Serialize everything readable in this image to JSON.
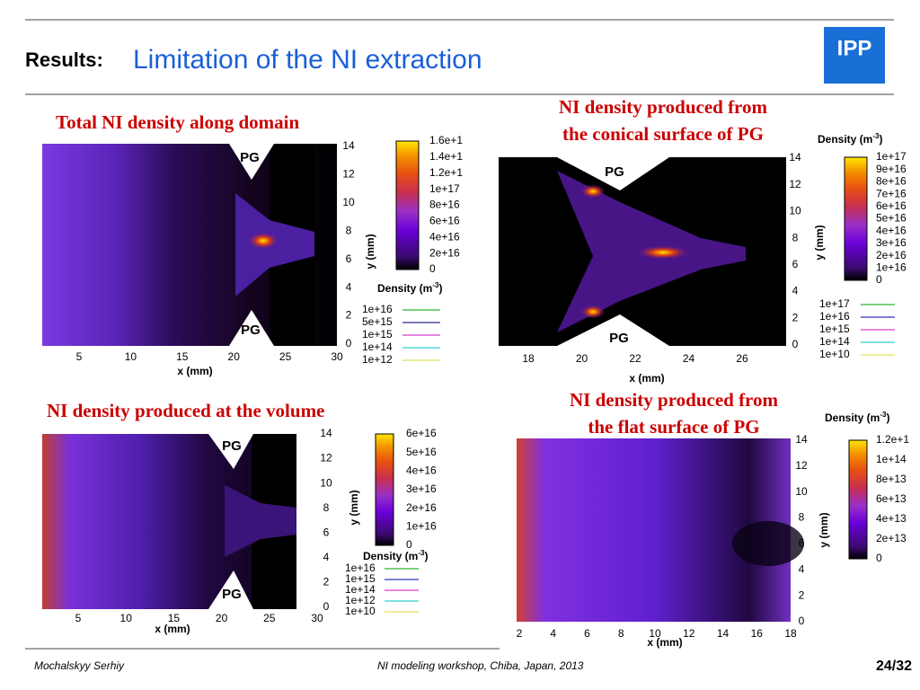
{
  "header": {
    "section": "Results:",
    "title": "Limitation of the NI extraction",
    "logo": "IPP"
  },
  "panels": [
    {
      "title": [
        "Total NI density along domain"
      ],
      "pg": [
        "PG",
        "PG"
      ],
      "yticks": [
        14,
        12,
        10,
        8,
        6,
        4,
        2,
        0
      ],
      "xticks": [
        5,
        10,
        15,
        20,
        25,
        30
      ],
      "x_label": "x (mm)",
      "y_label": "y (mm)",
      "colorbar_label": {
        "base": "Density (m",
        "exponent": "-3",
        "close": ")"
      },
      "colorbar_ticks": [
        "1.6e+1",
        "1.4e+1",
        "1.2e+1",
        "1e+17",
        "8e+16",
        "6e+16",
        "4e+16",
        "2e+16",
        0
      ],
      "contours": [
        {
          "label": "1e+16",
          "color": "#2db52d"
        },
        {
          "label": "5e+15",
          "color": "#2a2a8a"
        },
        {
          "label": "1e+15",
          "color": "#d040d0"
        },
        {
          "label": "1e+14",
          "color": "#30d0d0"
        },
        {
          "label": "1e+12",
          "color": "#e0e060"
        }
      ]
    },
    {
      "title": [
        "NI density produced from",
        "the conical surface of PG"
      ],
      "pg": [
        "PG",
        "PG"
      ],
      "yticks": [
        14,
        12,
        10,
        8,
        6,
        4,
        2,
        0
      ],
      "xticks": [
        18,
        20,
        22,
        24,
        26
      ],
      "x_label": "x (mm)",
      "y_label": "y (mm)",
      "colorbar_label": {
        "base": "Density (m",
        "exponent": "-3",
        "close": ")"
      },
      "colorbar_ticks": [
        "1e+17",
        "9e+16",
        "8e+16",
        "7e+16",
        "6e+16",
        "5e+16",
        "4e+16",
        "3e+16",
        "2e+16",
        "1e+16",
        0
      ],
      "contours": [
        {
          "label": "1e+17",
          "color": "#2db52d"
        },
        {
          "label": "1e+16",
          "color": "#3030c0"
        },
        {
          "label": "1e+15",
          "color": "#d040d0"
        },
        {
          "label": "1e+14",
          "color": "#30d0d0"
        },
        {
          "label": "1e+10",
          "color": "#e0e060"
        }
      ]
    },
    {
      "title": [
        "NI density produced at the volume"
      ],
      "pg": [
        "PG",
        "PG"
      ],
      "yticks": [
        14,
        12,
        10,
        8,
        6,
        4,
        2,
        0
      ],
      "xticks": [
        5,
        10,
        15,
        20,
        25,
        30
      ],
      "x_label": "x (mm)",
      "y_label": "y (mm)",
      "colorbar_label": {
        "base": "Density (m",
        "exponent": "-3",
        "close": ")"
      },
      "colorbar_ticks": [
        "6e+16",
        "5e+16",
        "4e+16",
        "3e+16",
        "2e+16",
        "1e+16",
        0
      ],
      "contours": [
        {
          "label": "1e+16",
          "color": "#2db52d"
        },
        {
          "label": "1e+15",
          "color": "#3030c0"
        },
        {
          "label": "1e+14",
          "color": "#d040d0"
        },
        {
          "label": "1e+12",
          "color": "#30d0d0"
        },
        {
          "label": "1e+10",
          "color": "#e0e060"
        }
      ]
    },
    {
      "title": [
        "NI density produced from",
        "the flat surface of PG"
      ],
      "pg": [],
      "yticks": [
        14,
        12,
        10,
        8,
        6,
        4,
        2,
        0
      ],
      "xticks": [
        2,
        4,
        6,
        8,
        10,
        12,
        14,
        16,
        18
      ],
      "x_label": "x (mm)",
      "y_label": "y (mm)",
      "colorbar_label": {
        "base": "Density (m",
        "exponent": "-3",
        "close": ")"
      },
      "colorbar_ticks": [
        "1.2e+1",
        "1e+14",
        "8e+13",
        "6e+13",
        "4e+13",
        "2e+13",
        0
      ],
      "contours": []
    }
  ],
  "footer": {
    "author": "Mochalskyy Serhiy",
    "event": "NI modeling workshop,  Chiba, Japan, 2013",
    "page": "24/32"
  }
}
